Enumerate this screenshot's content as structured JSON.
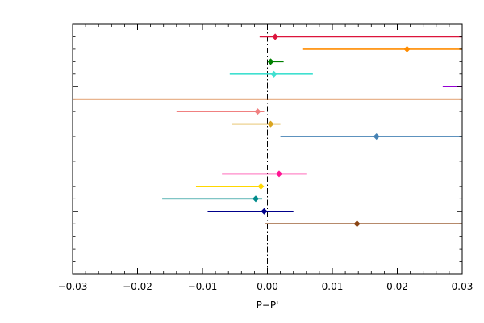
{
  "chart_data": {
    "type": "scatter",
    "subtype": "forest-plot-horizontal-error-bars",
    "title": "",
    "xlabel": "P−P'",
    "ylabel": "",
    "xlim": [
      -0.03,
      0.03
    ],
    "grid": false,
    "legend": "none",
    "x_ticks": [
      -0.03,
      -0.02,
      -0.01,
      0.0,
      0.01,
      0.02,
      0.03
    ],
    "x_tick_labels": [
      "−0.03",
      "−0.02",
      "−0.01",
      "0.00",
      "0.01",
      "0.02",
      "0.03"
    ],
    "x_minor_step": 0.002,
    "row_count": 19,
    "reference_line": {
      "x": 0.0,
      "style": "dash-dot",
      "color": "#000000"
    },
    "series": [
      {
        "row": 1,
        "value": 0.0012,
        "low": -0.0012,
        "high": 0.03,
        "color": "#dc143c",
        "marker": true
      },
      {
        "row": 2,
        "value": 0.0215,
        "low": 0.0055,
        "high": 0.03,
        "color": "#ff8c00",
        "marker": true
      },
      {
        "row": 3,
        "value": 0.0005,
        "low": 0.0002,
        "high": 0.0025,
        "color": "#008000",
        "marker": true
      },
      {
        "row": 4,
        "value": 0.001,
        "low": -0.0058,
        "high": 0.007,
        "color": "#40e0d0",
        "marker": true
      },
      {
        "row": 5,
        "value": null,
        "low": 0.027,
        "high": 0.03,
        "color": "#9400d3",
        "marker": false
      },
      {
        "row": 6,
        "value": null,
        "low": -0.03,
        "high": 0.03,
        "color": "#d2691e",
        "marker": false
      },
      {
        "row": 7,
        "value": -0.0015,
        "low": -0.014,
        "high": -0.0005,
        "color": "#f08080",
        "marker": true
      },
      {
        "row": 8,
        "value": 0.0005,
        "low": -0.0055,
        "high": 0.002,
        "color": "#daa520",
        "marker": true
      },
      {
        "row": 9,
        "value": 0.0168,
        "low": 0.002,
        "high": 0.03,
        "color": "#4682b4",
        "marker": true
      },
      {
        "row": 12,
        "value": 0.0018,
        "low": -0.007,
        "high": 0.006,
        "color": "#ff1493",
        "marker": true
      },
      {
        "row": 13,
        "value": -0.001,
        "low": -0.011,
        "high": -0.0008,
        "color": "#ffd700",
        "marker": true
      },
      {
        "row": 14,
        "value": -0.0018,
        "low": -0.0162,
        "high": -0.0008,
        "color": "#008b8b",
        "marker": true
      },
      {
        "row": 15,
        "value": -0.0005,
        "low": -0.0092,
        "high": 0.004,
        "color": "#00008b",
        "marker": true
      },
      {
        "row": 16,
        "value": 0.0138,
        "low": -0.0003,
        "high": 0.03,
        "color": "#8b4513",
        "marker": true
      }
    ]
  }
}
